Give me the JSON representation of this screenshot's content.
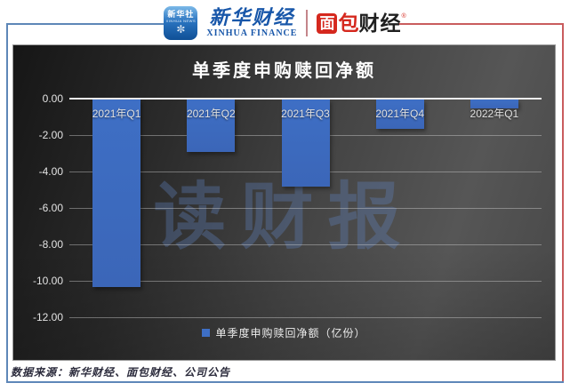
{
  "header": {
    "xinhua_icon": {
      "line1": "新华社",
      "line2": "XINHUA NEWS"
    },
    "xinhua_wordmark": {
      "cn": "新华财经",
      "en": "XINHUA FINANCE"
    },
    "mianbao_logo": {
      "char1": "面",
      "char2": "包",
      "rest": "财经",
      "reg": "®"
    }
  },
  "chart_data": {
    "type": "bar",
    "title": "单季度申购赎回净额",
    "categories": [
      "2021年Q1",
      "2021年Q2",
      "2021年Q3",
      "2021年Q4",
      "2022年Q1"
    ],
    "values": [
      -10.3,
      -2.9,
      -4.8,
      -1.6,
      -0.5
    ],
    "series_name": "单季度申购赎回净额（亿份）",
    "unit": "亿份",
    "ylim": [
      0,
      -12
    ],
    "yticks": [
      "0.00",
      "-2.00",
      "-4.00",
      "-6.00",
      "-8.00",
      "-10.00",
      "-12.00"
    ],
    "grid": true,
    "legend_position": "bottom",
    "bar_color": "#3e6fc5",
    "background": "dark-gradient"
  },
  "legend": {
    "label": "单季度申购赎回净额（亿份）"
  },
  "watermark": {
    "text": "读财报"
  },
  "footer": {
    "source": "数据来源：新华财经、面包财经、公司公告"
  },
  "colors": {
    "bar_blue": "#3e6fc5",
    "frame_blue": "#5e87b8",
    "frame_red": "#c95c5e",
    "mianbao_red": "#d5281e",
    "xinhua_blue": "#1756a9"
  }
}
